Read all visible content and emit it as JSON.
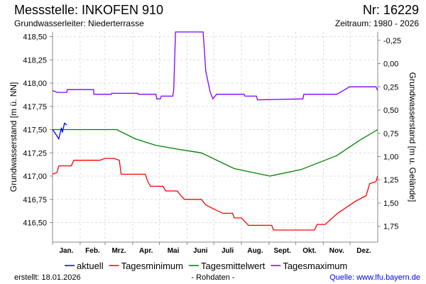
{
  "header": {
    "title": "Messstelle: INKOFEN 910",
    "number": "Nr: 16229",
    "aquifer": "Grundwasserleiter:   Niederterrasse",
    "period": "Zeitraum: 1980 - 2026"
  },
  "footer": {
    "created": "erstellt:  18.01.2026",
    "raw": "- Rohdaten -",
    "source": "Quelle: www.lfu.bayern.de"
  },
  "colors": {
    "aktuell": "#0000ff",
    "min": "#ff0000",
    "mean": "#008000",
    "max": "#8000ff"
  },
  "chart_data": {
    "type": "line",
    "ylabel": "Grundwasserstand [m ü. NN]",
    "ylabel_right": "Grundwasserstand [m u. Gelände]",
    "ylim": [
      416.29,
      418.55
    ],
    "xlim": [
      1,
      366
    ],
    "ground_level": 418.21,
    "yticks": [
      "418,50",
      "418,25",
      "418,00",
      "417,75",
      "417,50",
      "417,25",
      "417,00",
      "416,75",
      "416,50"
    ],
    "ytick_values": [
      418.5,
      418.25,
      418.0,
      417.75,
      417.5,
      417.25,
      417.0,
      416.75,
      416.5
    ],
    "yticks_right": [
      "-0,25",
      "0,00",
      "0,25",
      "0,50",
      "0,75",
      "1,00",
      "1,25",
      "1,50",
      "1,75"
    ],
    "yticks_right_values": [
      -0.25,
      0,
      0.25,
      0.5,
      0.75,
      1.0,
      1.25,
      1.5,
      1.75
    ],
    "months": [
      "Jan.",
      "Feb.",
      "Mrz.",
      "Apr.",
      "Mai",
      "Juni",
      "Juli",
      "Aug.",
      "Sept.",
      "Okt.",
      "Nov.",
      "Dez."
    ],
    "grid": true,
    "legend_position": "bottom",
    "series": [
      {
        "key": "min",
        "name": "Tagesminimum",
        "points": [
          [
            1,
            417.02
          ],
          [
            6,
            417.04
          ],
          [
            8,
            417.11
          ],
          [
            22,
            417.11
          ],
          [
            25,
            417.17
          ],
          [
            54,
            417.17
          ],
          [
            60,
            417.19
          ],
          [
            70,
            417.19
          ],
          [
            76,
            417.17
          ],
          [
            78,
            417.02
          ],
          [
            105,
            417.02
          ],
          [
            108,
            416.94
          ],
          [
            111,
            416.89
          ],
          [
            125,
            416.89
          ],
          [
            128,
            416.84
          ],
          [
            141,
            416.84
          ],
          [
            145,
            416.79
          ],
          [
            149,
            416.75
          ],
          [
            168,
            416.75
          ],
          [
            173,
            416.69
          ],
          [
            181,
            416.65
          ],
          [
            192,
            416.6
          ],
          [
            203,
            416.6
          ],
          [
            205,
            416.55
          ],
          [
            213,
            416.55
          ],
          [
            221,
            416.47
          ],
          [
            247,
            416.47
          ],
          [
            249,
            416.42
          ],
          [
            295,
            416.42
          ],
          [
            298,
            416.48
          ],
          [
            307,
            416.48
          ],
          [
            321,
            416.6
          ],
          [
            341,
            416.73
          ],
          [
            353,
            416.79
          ],
          [
            357,
            416.92
          ],
          [
            364,
            416.94
          ],
          [
            366,
            417.0
          ]
        ]
      },
      {
        "key": "mean",
        "name": "Tagesmittelwert",
        "points": [
          [
            1,
            417.5
          ],
          [
            40,
            417.5
          ],
          [
            73,
            417.5
          ],
          [
            94,
            417.4
          ],
          [
            117,
            417.33
          ],
          [
            141,
            417.29
          ],
          [
            168,
            417.25
          ],
          [
            205,
            417.08
          ],
          [
            245,
            417.0
          ],
          [
            280,
            417.07
          ],
          [
            320,
            417.22
          ],
          [
            345,
            417.38
          ],
          [
            366,
            417.5
          ]
        ]
      },
      {
        "key": "max",
        "name": "Tagesmaximum",
        "points": [
          [
            1,
            417.92
          ],
          [
            6,
            417.9
          ],
          [
            17,
            417.9
          ],
          [
            17.5,
            417.93
          ],
          [
            47,
            417.93
          ],
          [
            47.5,
            417.88
          ],
          [
            67,
            417.88
          ],
          [
            67.5,
            417.89
          ],
          [
            97,
            417.89
          ],
          [
            97.5,
            417.88
          ],
          [
            117,
            417.88
          ],
          [
            118,
            417.83
          ],
          [
            122,
            417.83
          ],
          [
            123,
            417.86
          ],
          [
            136,
            417.86
          ],
          [
            137,
            417.93
          ],
          [
            139,
            418.55
          ],
          [
            170,
            418.55
          ],
          [
            173,
            418.13
          ],
          [
            178,
            417.9
          ],
          [
            181,
            417.83
          ],
          [
            185,
            417.88
          ],
          [
            216,
            417.88
          ],
          [
            217,
            417.86
          ],
          [
            230,
            417.86
          ],
          [
            231,
            417.82
          ],
          [
            282,
            417.83
          ],
          [
            283,
            417.88
          ],
          [
            320,
            417.88
          ],
          [
            331,
            417.94
          ],
          [
            334,
            417.96
          ],
          [
            364,
            417.96
          ],
          [
            366,
            417.92
          ]
        ]
      },
      {
        "key": "aktuell",
        "name": "aktuell",
        "points": [
          [
            1,
            417.5
          ],
          [
            4,
            417.46
          ],
          [
            8,
            417.4
          ],
          [
            11,
            417.52
          ],
          [
            12,
            417.47
          ],
          [
            14.5,
            417.57
          ],
          [
            17,
            417.55
          ]
        ]
      }
    ]
  }
}
